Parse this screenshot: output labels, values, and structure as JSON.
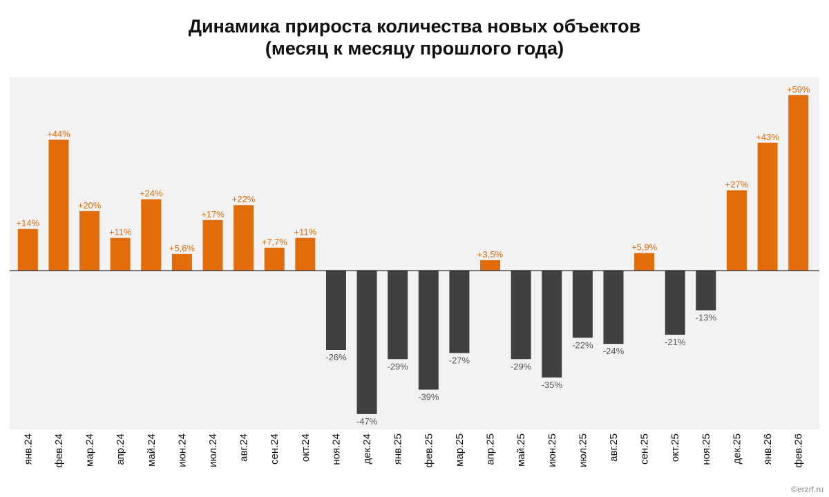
{
  "title": {
    "line1": "Динамика прироста количества новых объектов",
    "line2": "(месяц к месяцу прошлого года)"
  },
  "chart_data": {
    "type": "bar",
    "title": "Динамика прироста количества новых объектов (месяц к месяцу прошлого года)",
    "xlabel": "",
    "ylabel": "",
    "ylim": [
      -52,
      65
    ],
    "grid": false,
    "legend": "none",
    "categories": [
      "янв.24",
      "фев.24",
      "мар.24",
      "апр.24",
      "май.24",
      "июн.24",
      "июл.24",
      "авг.24",
      "сен.24",
      "окт.24",
      "ноя.24",
      "дек.24",
      "янв.25",
      "фев.25",
      "мар.25",
      "апр.25",
      "май.25",
      "июн.25",
      "июл.25",
      "авг.25",
      "сен.25",
      "окт.25",
      "ноя.25",
      "дек.25",
      "янв.26",
      "фев.26"
    ],
    "values": [
      14,
      44,
      20,
      11,
      24,
      5.6,
      17,
      22,
      7.7,
      11,
      -26,
      -47,
      -29,
      -39,
      -27,
      3.5,
      -29,
      -35,
      -22,
      -24,
      5.9,
      -21,
      -13,
      27,
      43,
      59
    ],
    "labels": [
      "+14%",
      "+44%",
      "+20%",
      "+11%",
      "+24%",
      "+5,6%",
      "+17%",
      "+22%",
      "+7,7%",
      "+11%",
      "-26%",
      "-47%",
      "-29%",
      "-39%",
      "-27%",
      "+3,5%",
      "-29%",
      "-35%",
      "-22%",
      "-24%",
      "+5,9%",
      "-21%",
      "-13%",
      "+27%",
      "+43%",
      "+59%"
    ],
    "colors": {
      "positive": "#e36c0a",
      "negative": "#404040",
      "positive_label": "#e36c0a",
      "negative_label": "#555555",
      "plot_background": "#f2f2f2",
      "axis": "#000000"
    }
  },
  "credit": "©erzrf.ru"
}
